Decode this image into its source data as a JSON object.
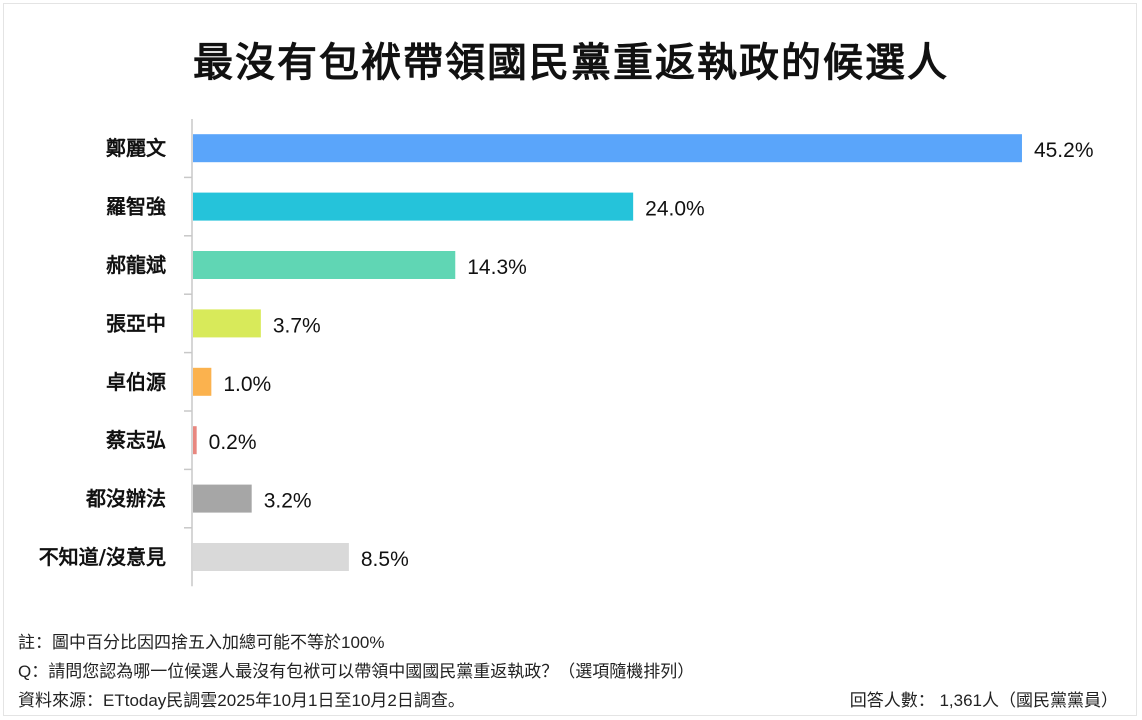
{
  "chart_data": {
    "type": "bar",
    "orientation": "horizontal",
    "title": "最沒有包袱帶領國民黨重返執政的候選人",
    "categories": [
      "鄭麗文",
      "羅智強",
      "郝龍斌",
      "張亞中",
      "卓伯源",
      "蔡志弘",
      "都沒辦法",
      "不知道/沒意見"
    ],
    "values": [
      45.2,
      24.0,
      14.3,
      3.7,
      1.0,
      0.2,
      3.2,
      8.5
    ],
    "labels": [
      "45.2%",
      "24.0%",
      "14.3%",
      "3.7%",
      "1.0%",
      "0.2%",
      "3.2%",
      "8.5%"
    ],
    "colors": [
      "#5aa5fa",
      "#25c3da",
      "#60d6b4",
      "#d8ea5a",
      "#fbb24e",
      "#e8877f",
      "#a6a6a6",
      "#d9d9d9"
    ],
    "xlabel": "",
    "ylabel": "",
    "xlim": [
      0,
      50
    ],
    "grid": false
  },
  "footer": {
    "note": "註：圖中百分比因四捨五入加總可能不等於100%",
    "question": "Q：請問您認為哪一位候選人最沒有包袱可以帶領中國國民黨重返執政？（選項隨機排列）",
    "source": "資料來源：ETtoday民調雲2025年10月1日至10月2日調查。",
    "respondents": "回答人數： 1,361人（國民黨黨員）"
  }
}
